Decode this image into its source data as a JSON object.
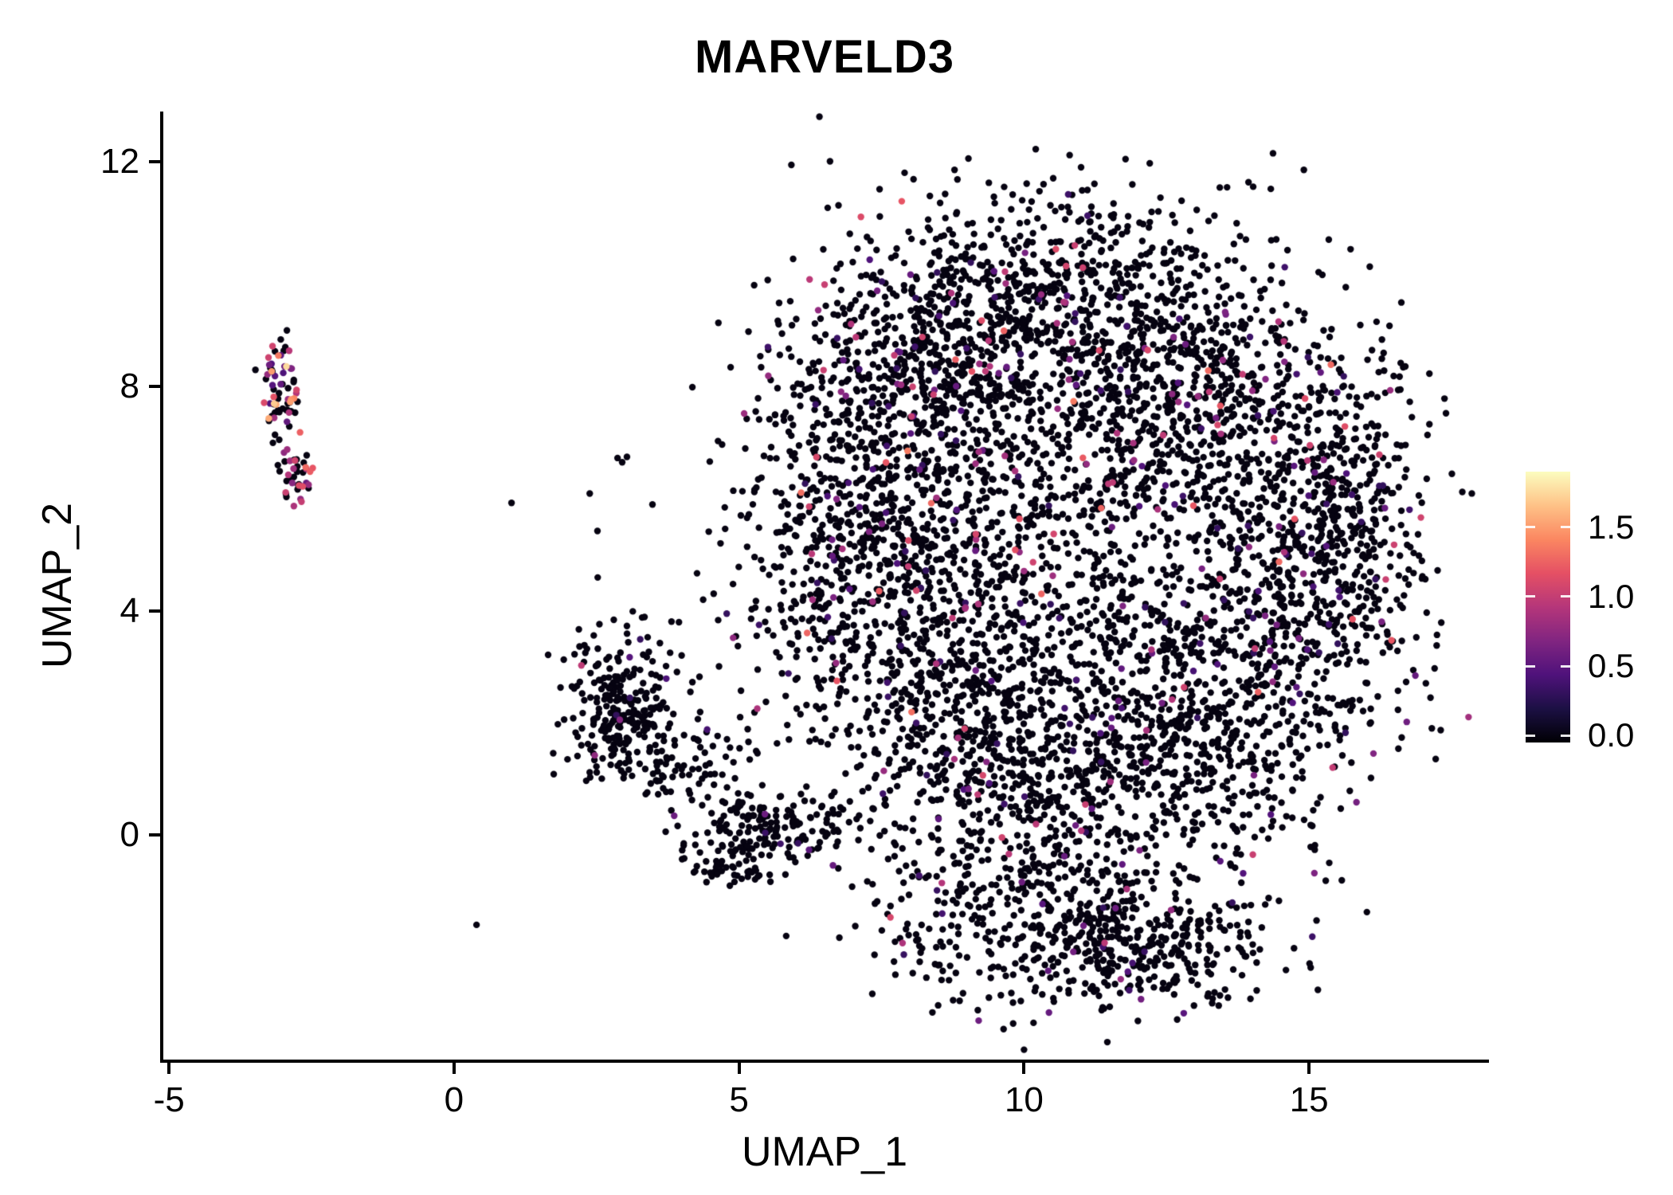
{
  "title": "MARVELD3",
  "axes": {
    "x": {
      "label": "UMAP_1",
      "domain": [
        -5.1,
        18.1
      ],
      "ticks": [
        {
          "value": -5,
          "label": "-5"
        },
        {
          "value": 0,
          "label": "0"
        },
        {
          "value": 5,
          "label": "5"
        },
        {
          "value": 10,
          "label": "10"
        },
        {
          "value": 15,
          "label": "15"
        }
      ]
    },
    "y": {
      "label": "UMAP_2",
      "domain": [
        -4.0,
        12.9
      ],
      "ticks": [
        {
          "value": 0,
          "label": "0"
        },
        {
          "value": 4,
          "label": "4"
        },
        {
          "value": 8,
          "label": "8"
        },
        {
          "value": 12,
          "label": "12"
        }
      ]
    }
  },
  "legend": {
    "colormap": "magma",
    "vmin": -0.05,
    "vmax": 1.9,
    "stops": [
      "#000004",
      "#1c1044",
      "#4f127b",
      "#812581",
      "#b5367a",
      "#e55064",
      "#fb8761",
      "#fec287",
      "#fcfdbf"
    ],
    "ticks": [
      {
        "value": 0.0,
        "label": "0.0"
      },
      {
        "value": 0.5,
        "label": "0.5"
      },
      {
        "value": 1.0,
        "label": "1.0"
      },
      {
        "value": 1.5,
        "label": "1.5"
      }
    ]
  },
  "chart_data": {
    "type": "scatter",
    "title": "MARVELD3",
    "xlabel": "UMAP_1",
    "ylabel": "UMAP_2",
    "xlim": [
      -5.1,
      18.1
    ],
    "ylim": [
      -4.0,
      12.9
    ],
    "grid": false,
    "legend_position": "right",
    "point_radius_px": 4.2,
    "seed": 1337,
    "description": "UMAP feature plot of MARVELD3 expression; most cells near 0 (black), scattered cells 0.3-1.8 (purple to orange) on magma scale",
    "clusters": [
      {
        "name": "topleft-upper",
        "cx": -3.02,
        "cy": 7.95,
        "sx": 0.16,
        "sy": 0.45,
        "count": 70,
        "colored_fraction": 0.45,
        "value_range": [
          0.4,
          1.8
        ],
        "value_power": 1.3
      },
      {
        "name": "topleft-lower",
        "cx": -2.78,
        "cy": 6.35,
        "sx": 0.14,
        "sy": 0.24,
        "count": 38,
        "colored_fraction": 0.5,
        "value_range": [
          0.4,
          1.3
        ],
        "value_power": 1.3
      },
      {
        "name": "midleft-main",
        "cx": 2.95,
        "cy": 2.3,
        "sx": 0.45,
        "sy": 0.65,
        "count": 260,
        "colored_fraction": 0.02,
        "value_range": [
          0.3,
          1.6
        ],
        "value_power": 2.0
      },
      {
        "name": "midleft-trail",
        "cx": 4.0,
        "cy": 1.35,
        "sx": 0.7,
        "sy": 0.5,
        "count": 90,
        "colored_fraction": 0.02,
        "value_range": [
          0.3,
          1.0
        ],
        "value_power": 2.0
      },
      {
        "name": "midleft-spur",
        "cx": 5.5,
        "cy": 0.1,
        "sx": 0.7,
        "sy": 0.3,
        "count": 170,
        "colored_fraction": 0.03,
        "value_range": [
          0.3,
          1.0
        ],
        "value_power": 2.0
      },
      {
        "name": "midleft-dot",
        "cx": 4.85,
        "cy": -0.55,
        "sx": 0.3,
        "sy": 0.18,
        "count": 45,
        "colored_fraction": 0.03,
        "value_range": [
          0.3,
          0.9
        ],
        "value_power": 2.0
      },
      {
        "name": "main-upperleft",
        "cx": 8.2,
        "cy": 8.3,
        "sx": 1.3,
        "sy": 1.4,
        "count": 700,
        "colored_fraction": 0.07,
        "value_range": [
          0.3,
          1.4
        ],
        "value_power": 1.8
      },
      {
        "name": "main-top",
        "cx": 10.8,
        "cy": 9.5,
        "sx": 1.6,
        "sy": 1.1,
        "count": 600,
        "colored_fraction": 0.05,
        "value_range": [
          0.3,
          1.2
        ],
        "value_power": 1.8
      },
      {
        "name": "main-upperright",
        "cx": 13.2,
        "cy": 7.6,
        "sx": 1.4,
        "sy": 1.4,
        "count": 650,
        "colored_fraction": 0.07,
        "value_range": [
          0.3,
          1.3
        ],
        "value_power": 1.8
      },
      {
        "name": "main-right",
        "cx": 15.0,
        "cy": 5.0,
        "sx": 1.0,
        "sy": 1.6,
        "count": 500,
        "colored_fraction": 0.08,
        "value_range": [
          0.3,
          1.3
        ],
        "value_power": 1.8
      },
      {
        "name": "main-lowerright",
        "cx": 13.3,
        "cy": 2.6,
        "sx": 1.4,
        "sy": 1.5,
        "count": 600,
        "colored_fraction": 0.06,
        "value_range": [
          0.3,
          1.2
        ],
        "value_power": 1.8
      },
      {
        "name": "main-bottomcenter",
        "cx": 11.0,
        "cy": 1.0,
        "sx": 1.7,
        "sy": 1.2,
        "count": 600,
        "colored_fraction": 0.06,
        "value_range": [
          0.3,
          1.2
        ],
        "value_power": 1.8
      },
      {
        "name": "main-lowerleft",
        "cx": 8.8,
        "cy": 2.3,
        "sx": 1.4,
        "sy": 1.5,
        "count": 550,
        "colored_fraction": 0.05,
        "value_range": [
          0.3,
          1.2
        ],
        "value_power": 1.8
      },
      {
        "name": "main-left",
        "cx": 7.0,
        "cy": 5.0,
        "sx": 1.1,
        "sy": 1.5,
        "count": 550,
        "colored_fraction": 0.06,
        "value_range": [
          0.3,
          1.4
        ],
        "value_power": 1.8
      },
      {
        "name": "main-center",
        "cx": 10.3,
        "cy": 5.6,
        "sx": 2.0,
        "sy": 2.0,
        "count": 700,
        "colored_fraction": 0.07,
        "value_range": [
          0.3,
          1.3
        ],
        "value_power": 1.8
      },
      {
        "name": "bottom-lobe-left",
        "cx": 10.2,
        "cy": -1.6,
        "sx": 1.4,
        "sy": 0.75,
        "count": 350,
        "colored_fraction": 0.05,
        "value_range": [
          0.3,
          1.2
        ],
        "value_power": 1.8
      },
      {
        "name": "bottom-lobe-right",
        "cx": 12.3,
        "cy": -2.0,
        "sx": 1.0,
        "sy": 0.6,
        "count": 250,
        "colored_fraction": 0.04,
        "value_range": [
          0.3,
          1.0
        ],
        "value_power": 1.8
      },
      {
        "name": "right-edge",
        "cx": 16.0,
        "cy": 6.0,
        "sx": 0.5,
        "sy": 1.2,
        "count": 120,
        "colored_fraction": 0.07,
        "value_range": [
          0.3,
          1.1
        ],
        "value_power": 1.8
      },
      {
        "name": "sparse-outliers",
        "cx": 10.0,
        "cy": 4.5,
        "sx": 4.8,
        "sy": 3.8,
        "count": 60,
        "colored_fraction": 0.15,
        "value_range": [
          0.4,
          1.2
        ],
        "value_power": 1.5
      }
    ]
  }
}
